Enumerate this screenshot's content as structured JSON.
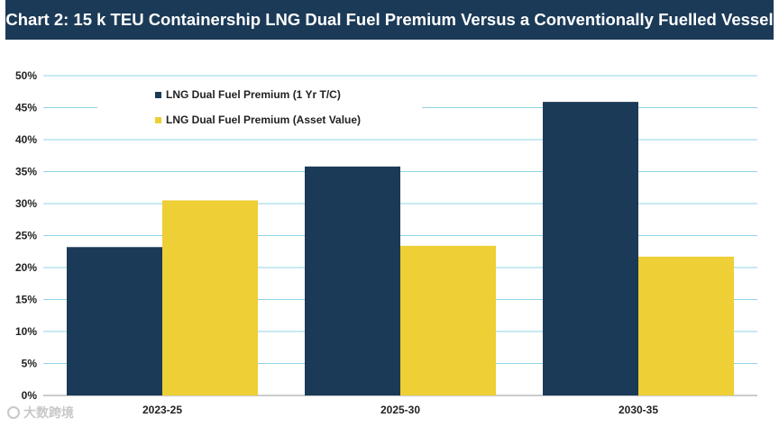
{
  "title": "Chart 2: 15 k TEU Containership LNG Dual Fuel Premium Versus a Conventionally Fuelled Vessel",
  "watermark": "大数跨境",
  "colors": {
    "title_bg": "#1b3a57",
    "series1": "#1b3a57",
    "series2": "#eecf35",
    "grid": "#8fd3e6"
  },
  "chart_data": {
    "type": "bar",
    "title": "Chart 2: 15 k TEU Containership LNG Dual Fuel Premium Versus a Conventionally Fuelled Vessel",
    "xlabel": "",
    "ylabel": "",
    "ylim": [
      0,
      50
    ],
    "yticks": [
      "0%",
      "5%",
      "10%",
      "15%",
      "20%",
      "25%",
      "30%",
      "35%",
      "40%",
      "45%",
      "50%"
    ],
    "categories": [
      "2023-25",
      "2025-30",
      "2030-35"
    ],
    "series": [
      {
        "name": "LNG Dual Fuel Premium (1 Yr T/C)",
        "color": "#1b3a57",
        "values": [
          23.2,
          35.8,
          45.9
        ]
      },
      {
        "name": "LNG Dual Fuel Premium (Asset Value)",
        "color": "#eecf35",
        "values": [
          30.5,
          23.4,
          21.7
        ]
      }
    ],
    "grid": true,
    "legend": "top-left"
  }
}
